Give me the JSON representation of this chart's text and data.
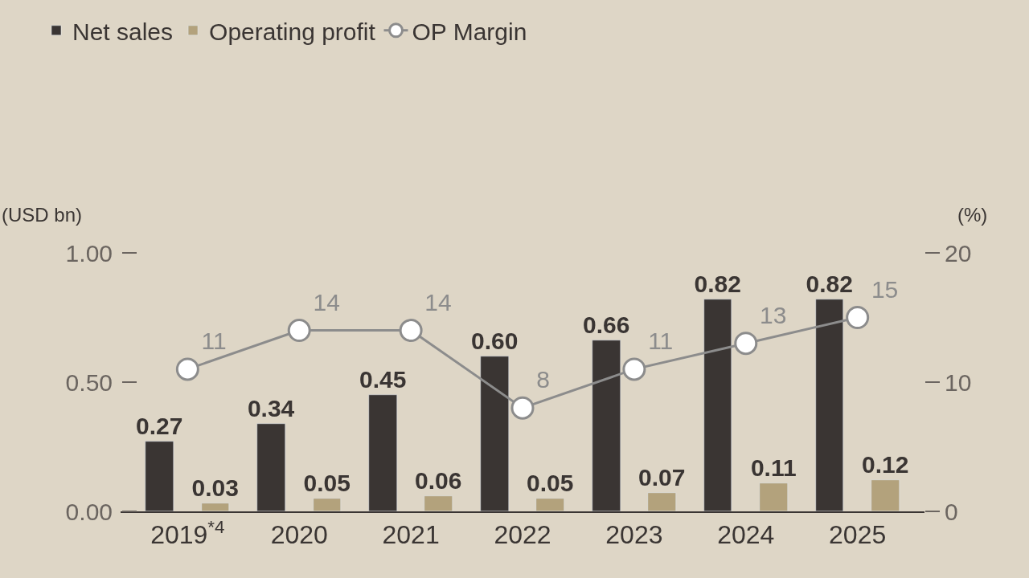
{
  "chart_data": {
    "type": "bar",
    "categories": [
      "2019$^{*4}$",
      "2020",
      "2021",
      "2022",
      "2023",
      "2024",
      "2025"
    ],
    "ylabel": "(USD bn)",
    "y2label": "(%)",
    "series": [
      {
        "name": "Net sales",
        "color": "#3a3533",
        "values": [
          0.27,
          0.34,
          0.45,
          0.6,
          0.66,
          0.82,
          0.82
        ],
        "value_labels": [
          "0.27",
          "0.34",
          "0.45",
          "0.60",
          "0.66",
          "0.82",
          "0.82"
        ]
      },
      {
        "name": "Operating profit",
        "color": "#b3a27c",
        "values": [
          0.03,
          0.05,
          0.06,
          0.05,
          0.07,
          0.11,
          0.12
        ],
        "value_labels": [
          "0.03",
          "0.05",
          "0.06",
          "0.05",
          "0.07",
          "0.11",
          "0.12"
        ]
      },
      {
        "name": "OP Margin",
        "type": "line",
        "axis": "y2",
        "color": "#8c8c8c",
        "marker": "circle",
        "values": [
          11,
          14,
          14,
          8,
          11,
          13,
          15
        ],
        "value_labels": [
          "11",
          "14",
          "14",
          "8",
          "11",
          "13",
          "15"
        ]
      }
    ],
    "ylim": [
      0,
      1
    ],
    "yticks": [
      {
        "value": 0,
        "label": "0.00"
      },
      {
        "value": 0.5,
        "label": "0.50"
      },
      {
        "value": 1,
        "label": "1.00"
      }
    ],
    "y2lim": [
      0,
      20
    ],
    "y2ticks": [
      0,
      10,
      20
    ],
    "grid": false,
    "legend": "top left"
  }
}
